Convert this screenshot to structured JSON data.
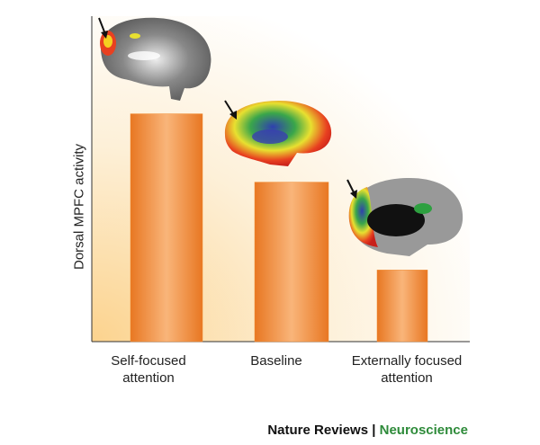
{
  "chart_data": {
    "type": "bar",
    "ylabel": "Dorsal MPFC activity",
    "categories": [
      "Self-focused attention",
      "Baseline",
      "Externally focused attention"
    ],
    "values": [
      70,
      49,
      22
    ],
    "color": "#f08a30",
    "ylim": [
      0,
      100
    ]
  },
  "footer": {
    "source": "Nature Reviews",
    "separator": "|",
    "journal": "Neuroscience"
  }
}
